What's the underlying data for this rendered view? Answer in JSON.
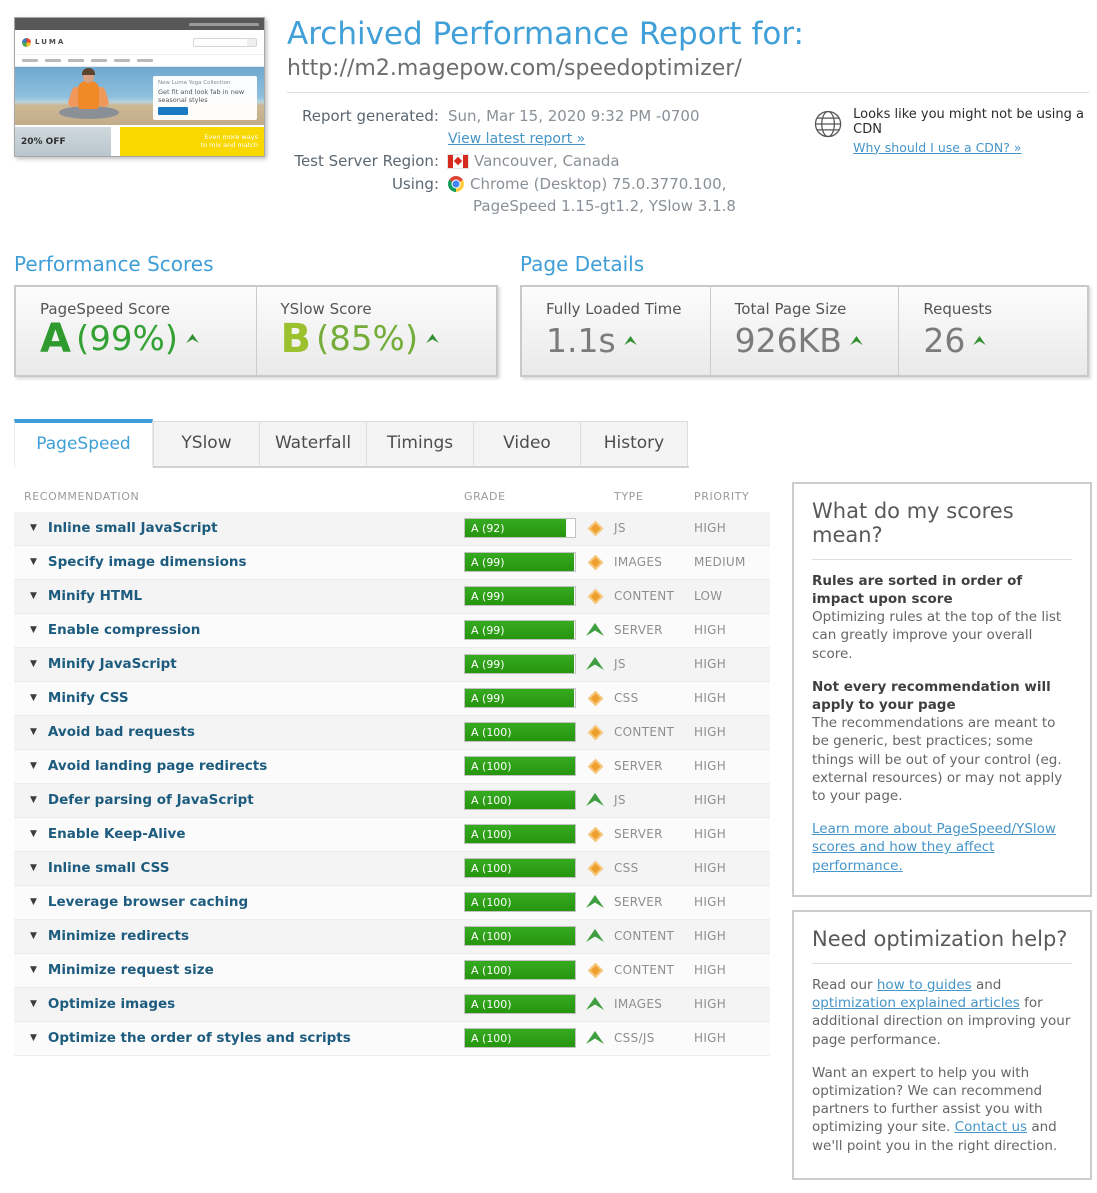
{
  "header": {
    "title": "Archived Performance Report for:",
    "url": "http://m2.magepow.com/speedoptimizer/"
  },
  "report_meta": {
    "generated_label": "Report generated:",
    "generated_value": "Sun, Mar 15, 2020 9:32 PM -0700",
    "latest_link": "View latest report »",
    "region_label": "Test Server Region:",
    "region_value": "Vancouver, Canada",
    "using_label": "Using:",
    "using_value_line1": "Chrome (Desktop) 75.0.3770.100,",
    "using_value_line2": "PageSpeed 1.15-gt1.2, YSlow 3.1.8"
  },
  "cdn": {
    "text": "Looks like you might not be using a CDN",
    "link": "Why should I use a CDN? »"
  },
  "thumbnail": {
    "store_name": "LUMA",
    "hero_tag": "New Luma Yoga Collection",
    "hero_heading": "Get fit and look fab in new seasonal styles",
    "promo_left": "20% OFF",
    "promo_right": "Even more ways to mix and match"
  },
  "performance_scores": {
    "title": "Performance Scores",
    "items": [
      {
        "label": "PageSpeed Score",
        "grade": "A",
        "percent": "(99%)",
        "grade_color": "#2f9b2f",
        "percent_color": "#33a133"
      },
      {
        "label": "YSlow Score",
        "grade": "B",
        "percent": "(85%)",
        "grade_color": "#9cc12e",
        "percent_color": "#74ad3a"
      }
    ]
  },
  "page_details": {
    "title": "Page Details",
    "items": [
      {
        "label": "Fully Loaded Time",
        "value": "1.1s"
      },
      {
        "label": "Total Page Size",
        "value": "926KB"
      },
      {
        "label": "Requests",
        "value": "26"
      }
    ]
  },
  "tabs": [
    {
      "label": "PageSpeed",
      "active": true
    },
    {
      "label": "YSlow",
      "active": false
    },
    {
      "label": "Waterfall",
      "active": false
    },
    {
      "label": "Timings",
      "active": false
    },
    {
      "label": "Video",
      "active": false
    },
    {
      "label": "History",
      "active": false
    }
  ],
  "table": {
    "headers": [
      "RECOMMENDATION",
      "GRADE",
      "TYPE",
      "PRIORITY"
    ],
    "rows": [
      {
        "label": "Inline small JavaScript",
        "grade": "A (92)",
        "score": 92,
        "icon": "diamond",
        "type": "JS",
        "priority": "HIGH"
      },
      {
        "label": "Specify image dimensions",
        "grade": "A (99)",
        "score": 99,
        "icon": "diamond",
        "type": "IMAGES",
        "priority": "MEDIUM"
      },
      {
        "label": "Minify HTML",
        "grade": "A (99)",
        "score": 99,
        "icon": "diamond",
        "type": "CONTENT",
        "priority": "LOW"
      },
      {
        "label": "Enable compression",
        "grade": "A (99)",
        "score": 99,
        "icon": "chevron",
        "type": "SERVER",
        "priority": "HIGH"
      },
      {
        "label": "Minify JavaScript",
        "grade": "A (99)",
        "score": 99,
        "icon": "chevron",
        "type": "JS",
        "priority": "HIGH"
      },
      {
        "label": "Minify CSS",
        "grade": "A (99)",
        "score": 99,
        "icon": "diamond",
        "type": "CSS",
        "priority": "HIGH"
      },
      {
        "label": "Avoid bad requests",
        "grade": "A (100)",
        "score": 100,
        "icon": "diamond",
        "type": "CONTENT",
        "priority": "HIGH"
      },
      {
        "label": "Avoid landing page redirects",
        "grade": "A (100)",
        "score": 100,
        "icon": "diamond",
        "type": "SERVER",
        "priority": "HIGH"
      },
      {
        "label": "Defer parsing of JavaScript",
        "grade": "A (100)",
        "score": 100,
        "icon": "chevron",
        "type": "JS",
        "priority": "HIGH"
      },
      {
        "label": "Enable Keep-Alive",
        "grade": "A (100)",
        "score": 100,
        "icon": "diamond",
        "type": "SERVER",
        "priority": "HIGH"
      },
      {
        "label": "Inline small CSS",
        "grade": "A (100)",
        "score": 100,
        "icon": "diamond",
        "type": "CSS",
        "priority": "HIGH"
      },
      {
        "label": "Leverage browser caching",
        "grade": "A (100)",
        "score": 100,
        "icon": "chevron",
        "type": "SERVER",
        "priority": "HIGH"
      },
      {
        "label": "Minimize redirects",
        "grade": "A (100)",
        "score": 100,
        "icon": "chevron",
        "type": "CONTENT",
        "priority": "HIGH"
      },
      {
        "label": "Minimize request size",
        "grade": "A (100)",
        "score": 100,
        "icon": "diamond",
        "type": "CONTENT",
        "priority": "HIGH"
      },
      {
        "label": "Optimize images",
        "grade": "A (100)",
        "score": 100,
        "icon": "chevron",
        "type": "IMAGES",
        "priority": "HIGH"
      },
      {
        "label": "Optimize the order of styles and scripts",
        "grade": "A (100)",
        "score": 100,
        "icon": "chevron",
        "type": "CSS/JS",
        "priority": "HIGH"
      }
    ]
  },
  "sidebar": {
    "scores_box": {
      "title": "What do my scores mean?",
      "paragraphs": [
        {
          "head": "Rules are sorted in order of impact upon score",
          "body": "Optimizing rules at the top of the list can greatly improve your overall score."
        },
        {
          "head": "Not every recommendation will apply to your page",
          "body": "The recommendations are meant to be generic, best practices; some things will be out of your control (eg. external resources) or may not apply to your page."
        }
      ],
      "link": "Learn more about PageSpeed/YSlow scores and how they affect performance."
    },
    "help_box": {
      "title": "Need optimization help?",
      "paragraphs": [
        {
          "segments": [
            {
              "t": "Read our "
            },
            {
              "l": "how to guides"
            },
            {
              "t": " and "
            },
            {
              "l": "optimization explained articles"
            },
            {
              "t": " for additional direction on improving your page performance."
            }
          ]
        },
        {
          "segments": [
            {
              "t": "Want an expert to help you with optimization? We can recommend partners to further assist you with optimizing your site. "
            },
            {
              "l": "Contact us"
            },
            {
              "t": " and we'll point you in the right direction."
            }
          ]
        }
      ]
    }
  },
  "colors": {
    "accent_blue": "#41a0d8",
    "grade_green": "#2da01c",
    "warning_orange": "#ef9f2e",
    "link_blue": "#4695c8"
  }
}
